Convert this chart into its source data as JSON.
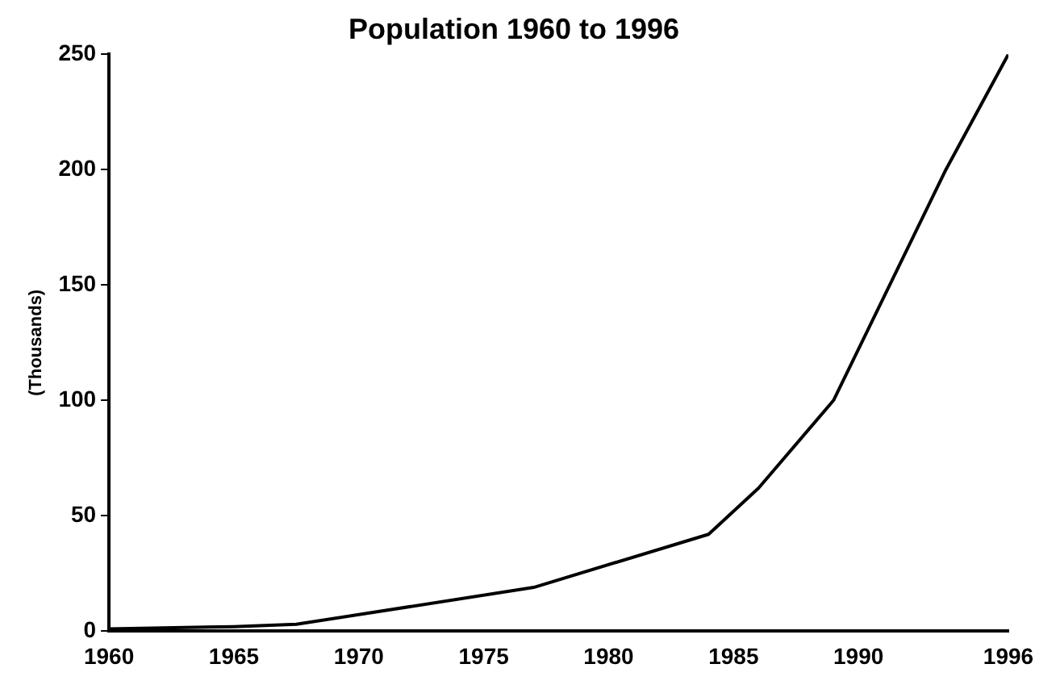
{
  "chart_data": {
    "type": "line",
    "title": "Population 1960 to 1996",
    "ylabel": "(Thousands)",
    "x": [
      1960,
      1965,
      1967.5,
      1977,
      1984,
      1986,
      1989,
      1993.5,
      1996
    ],
    "series": [
      {
        "color": "#000000",
        "values": [
          1,
          2,
          3,
          19,
          42,
          62,
          100,
          200,
          250
        ]
      }
    ],
    "xlim": [
      1960,
      1996
    ],
    "xticks": [
      1960,
      1965,
      1970,
      1975,
      1980,
      1985,
      1990,
      1996
    ],
    "ylim": [
      0,
      250
    ],
    "yticks": [
      0,
      50,
      100,
      150,
      200,
      250
    ],
    "grid": false,
    "legend": false,
    "marker": "none",
    "line_style": "solid"
  }
}
